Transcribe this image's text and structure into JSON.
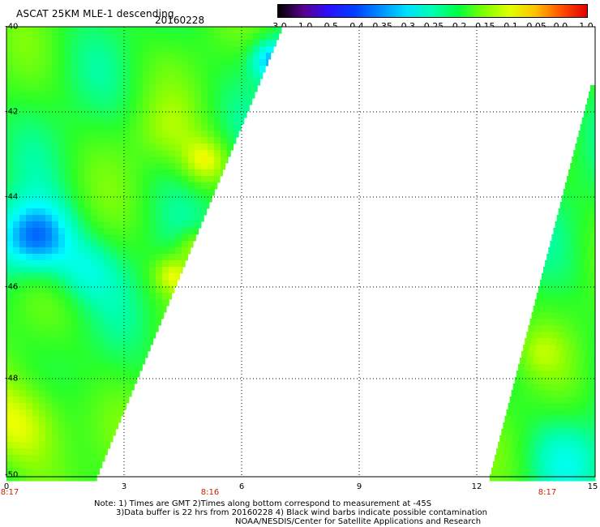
{
  "header": {
    "title": "ASCAT 25KM MLE-1 descending",
    "date": "20160228"
  },
  "colorbar": {
    "labels": [
      "-3.0",
      "-1.0",
      "-0.5",
      "-0.4",
      "-0.35",
      "-0.3",
      "-0.25",
      "-0.2",
      "-0.15",
      "-0.1",
      "-0.05",
      "0.0",
      "1.0"
    ],
    "colors": [
      "#000000",
      "#5a0090",
      "#2a10ff",
      "#0040ff",
      "#0090ff",
      "#00e0ff",
      "#00ffb0",
      "#00ff40",
      "#80ff00",
      "#e0ff00",
      "#ffc000",
      "#ff5000",
      "#e00000"
    ]
  },
  "axes": {
    "y_labels": [
      "-40",
      "-42",
      "-44",
      "-46",
      "-48",
      "-50"
    ],
    "x_labels": [
      "0",
      "3",
      "6",
      "9",
      "12",
      "15"
    ],
    "time_labels": [
      "8:17",
      "8:16",
      "8:17"
    ]
  },
  "notes": {
    "line1": "Note: 1) Times are GMT 2)Times along bottom correspond to measurement at -45S",
    "line2": "3)Data buffer is 22 hrs from 20160228 4) Black wind barbs indicate possible contamination",
    "line3": "NOAA/NESDIS/Center for Satellite Applications and Research"
  }
}
